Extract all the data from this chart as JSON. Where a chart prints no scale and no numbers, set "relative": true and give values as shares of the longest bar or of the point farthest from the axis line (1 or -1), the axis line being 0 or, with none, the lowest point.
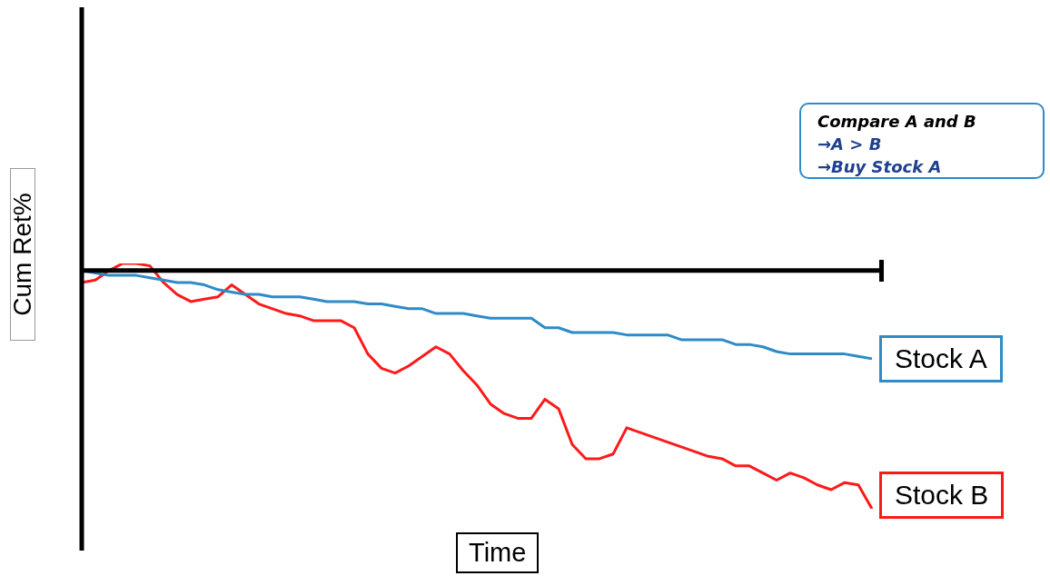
{
  "chart_data": {
    "type": "line",
    "relative": true,
    "xlabel": "Time",
    "ylabel": "Cum Ret%",
    "legend": false,
    "marker": "none",
    "line_style": "solid",
    "annotations": [
      "Compare A and B",
      "→A > B",
      "→Buy Stock A"
    ],
    "categories": [
      null,
      null,
      null,
      null,
      null,
      null,
      null,
      null,
      null,
      null,
      null,
      null,
      null,
      null,
      null,
      null,
      null,
      null,
      null,
      null,
      null,
      null,
      null,
      null,
      null,
      null,
      null,
      null,
      null,
      null,
      null,
      null,
      null,
      null,
      null,
      null,
      null,
      null,
      null,
      null,
      null,
      null,
      null,
      null,
      null,
      null,
      null,
      null,
      null,
      null,
      null,
      null,
      null,
      null,
      null,
      null,
      null,
      null,
      null
    ],
    "series": [
      {
        "name": "Stock A",
        "color": "#2e8bc8",
        "values": [
          0,
          -0.01,
          -0.02,
          -0.02,
          -0.02,
          -0.03,
          -0.04,
          -0.05,
          -0.05,
          -0.06,
          -0.08,
          -0.09,
          -0.1,
          -0.1,
          -0.11,
          -0.11,
          -0.11,
          -0.12,
          -0.13,
          -0.13,
          -0.13,
          -0.14,
          -0.14,
          -0.15,
          -0.16,
          -0.16,
          -0.18,
          -0.18,
          -0.18,
          -0.19,
          -0.2,
          -0.2,
          -0.2,
          -0.2,
          -0.24,
          -0.24,
          -0.26,
          -0.26,
          -0.26,
          -0.26,
          -0.27,
          -0.27,
          -0.27,
          -0.27,
          -0.29,
          -0.29,
          -0.29,
          -0.29,
          -0.31,
          -0.31,
          -0.32,
          -0.34,
          -0.35,
          -0.35,
          -0.35,
          -0.35,
          -0.35,
          -0.36,
          -0.37
        ]
      },
      {
        "name": "Stock B",
        "color": "#ff1a1a",
        "values": [
          -0.05,
          -0.04,
          0,
          0.03,
          0.03,
          0.02,
          -0.05,
          -0.1,
          -0.13,
          -0.12,
          -0.11,
          -0.06,
          -0.1,
          -0.14,
          -0.16,
          -0.18,
          -0.19,
          -0.21,
          -0.21,
          -0.21,
          -0.24,
          -0.35,
          -0.41,
          -0.43,
          -0.4,
          -0.36,
          -0.32,
          -0.35,
          -0.42,
          -0.48,
          -0.56,
          -0.6,
          -0.62,
          -0.62,
          -0.54,
          -0.58,
          -0.73,
          -0.79,
          -0.79,
          -0.77,
          -0.66,
          -0.68,
          -0.7,
          -0.72,
          -0.74,
          -0.76,
          -0.78,
          -0.79,
          -0.82,
          -0.82,
          -0.85,
          -0.88,
          -0.85,
          -0.87,
          -0.9,
          -0.92,
          -0.89,
          -0.9,
          -1
        ]
      }
    ]
  }
}
